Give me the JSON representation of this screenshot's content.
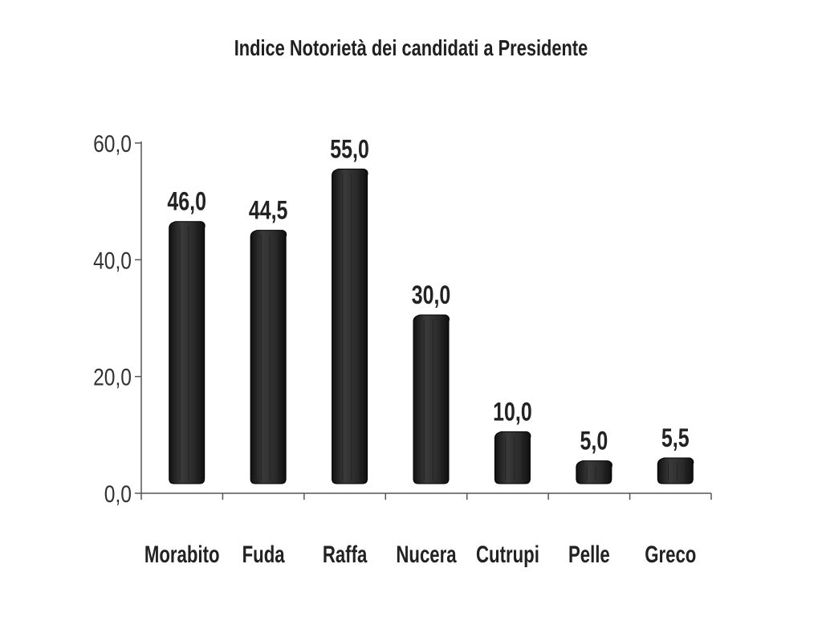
{
  "chart_data": {
    "type": "bar",
    "title": "Indice Notorietà dei candidati a Presidente",
    "xlabel": "",
    "ylabel": "",
    "categories": [
      "Morabito",
      "Fuda",
      "Raffa",
      "Nucera",
      "Cutrupi",
      "Pelle",
      "Greco"
    ],
    "values": [
      46.0,
      44.5,
      55.0,
      30.0,
      10.0,
      5.0,
      5.5
    ],
    "value_labels": [
      "46,0",
      "44,5",
      "55,0",
      "30,0",
      "10,0",
      "5,0",
      "5,5"
    ],
    "ylim": [
      0,
      60
    ],
    "yticks": [
      0,
      20,
      40,
      60
    ],
    "ytick_labels": [
      "0,0",
      "20,0",
      "40,0",
      "60,0"
    ],
    "grid": false,
    "legend": "none",
    "bar_color": "#262626"
  }
}
